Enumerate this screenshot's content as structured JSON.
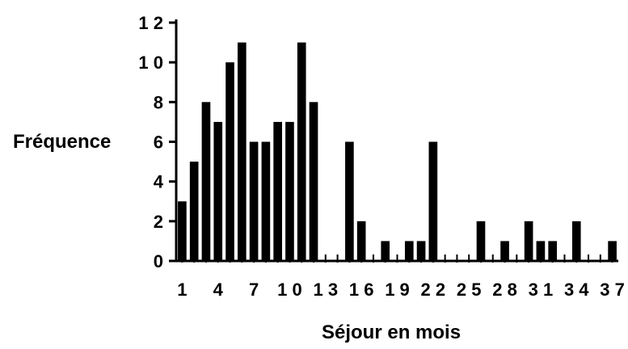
{
  "chart_data": {
    "type": "bar",
    "title": "",
    "xlabel": "Séjour en mois",
    "ylabel": "Fréquence",
    "ylim": [
      0,
      12
    ],
    "y_ticks": [
      0,
      2,
      4,
      6,
      8,
      10,
      12
    ],
    "y_tick_labels": [
      "0",
      "2",
      "4",
      "6",
      "8",
      "1 0",
      "1 2"
    ],
    "x_tick_labels": [
      "1",
      "4",
      "7",
      "1 0",
      "1 3",
      "1 6",
      "1 9",
      "2 2",
      "2 5",
      "2 8",
      "3 1",
      "3 4",
      "3 7"
    ],
    "x_tick_positions": [
      1,
      4,
      7,
      10,
      13,
      16,
      19,
      22,
      25,
      28,
      31,
      34,
      37
    ],
    "categories": [
      1,
      2,
      3,
      4,
      5,
      6,
      7,
      8,
      9,
      10,
      11,
      12,
      13,
      14,
      15,
      16,
      17,
      18,
      19,
      20,
      21,
      22,
      23,
      24,
      25,
      26,
      27,
      28,
      29,
      30,
      31,
      32,
      33,
      34,
      35,
      36,
      37
    ],
    "values": [
      3,
      5,
      8,
      7,
      10,
      11,
      6,
      6,
      7,
      7,
      11,
      8,
      0,
      0,
      6,
      2,
      0,
      1,
      0,
      1,
      1,
      6,
      0,
      0,
      0,
      2,
      0,
      1,
      0,
      2,
      1,
      1,
      0,
      2,
      0,
      0,
      1
    ],
    "grid": false,
    "legend": "none",
    "bar_color": "#000000"
  }
}
